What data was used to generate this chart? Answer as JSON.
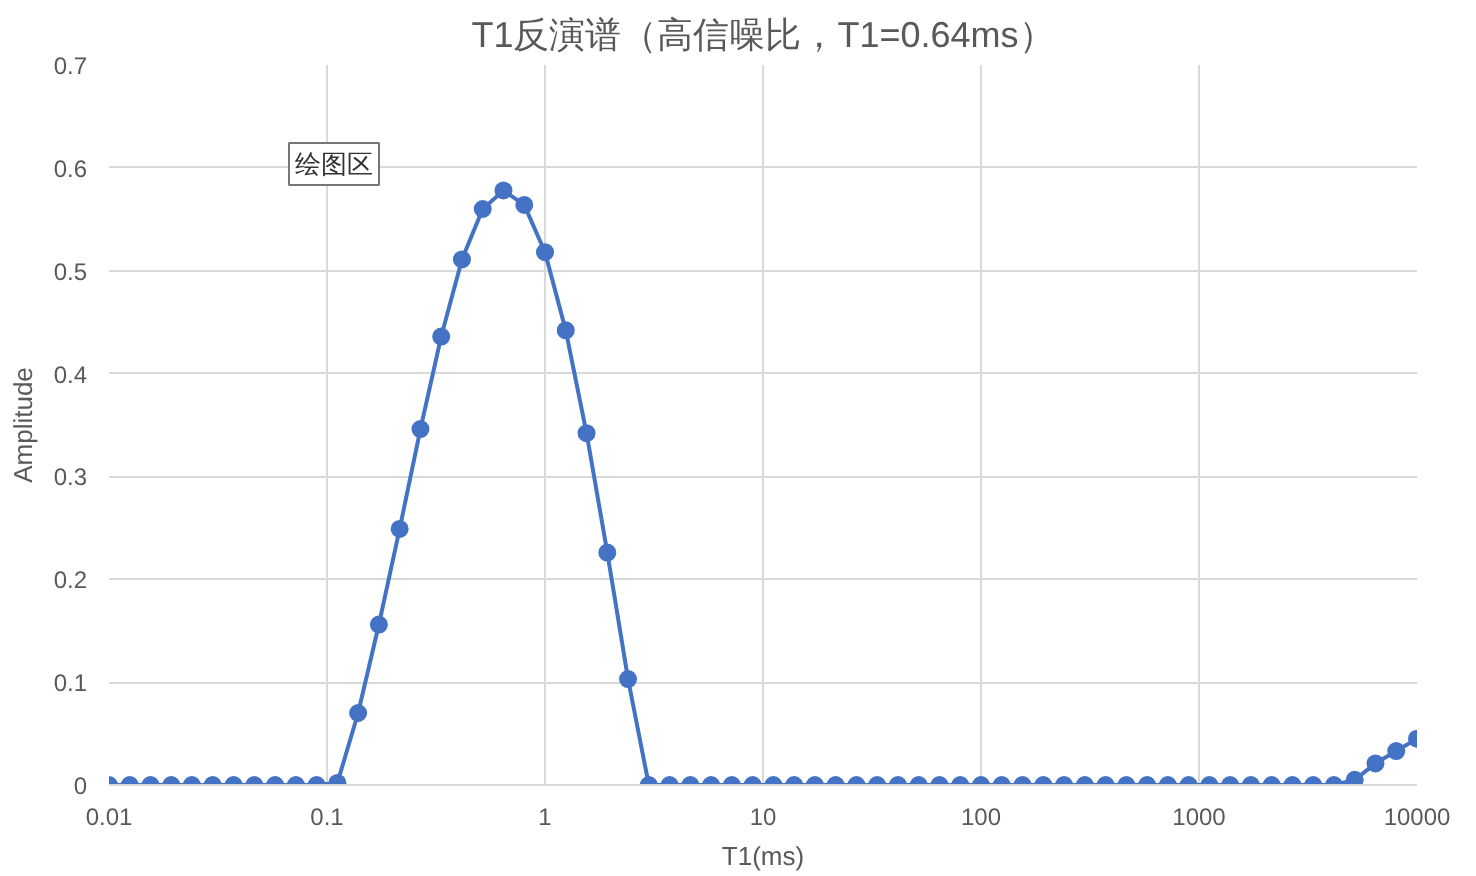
{
  "chart_data": {
    "type": "line",
    "title": "T1反演谱（高信噪比，T1=0.64ms）",
    "xlabel": "T1(ms)",
    "ylabel": "Amplitude",
    "annotations": [
      "绘图区"
    ],
    "log": "x",
    "grid": true,
    "marker": "circle",
    "line_style": "solid",
    "xlim": [
      0.01,
      10000
    ],
    "xticks": [
      0.01,
      0.1,
      1,
      10,
      100,
      1000,
      10000
    ],
    "ylim": [
      0,
      0.7
    ],
    "yticks": [
      0,
      0.1,
      0.2,
      0.3,
      0.4,
      0.5,
      0.6,
      0.7
    ],
    "x": [
      0.01,
      0.01245,
      0.0155,
      0.0193,
      0.024,
      0.0299,
      0.0373,
      0.0464,
      0.0578,
      0.072,
      0.0896,
      0.1116,
      0.1389,
      0.173,
      0.2154,
      0.2683,
      0.3341,
      0.416,
      0.5179,
      0.6449,
      0.8031,
      1.0,
      1.245,
      1.551,
      1.931,
      2.404,
      2.994,
      3.728,
      4.642,
      5.781,
      7.197,
      8.963,
      11.16,
      13.89,
      17.3,
      21.54,
      26.83,
      33.41,
      41.6,
      51.79,
      64.49,
      80.31,
      100,
      124.5,
      155.1,
      193.1,
      240.4,
      299.4,
      372.8,
      464.2,
      578.1,
      719.7,
      896.3,
      1116,
      1389,
      1730,
      2154,
      2683,
      3341,
      4160,
      5179,
      6449,
      8031,
      10000
    ],
    "series": [
      {
        "color": "#4472c4",
        "values": [
          0,
          0,
          0,
          0,
          0,
          0,
          0,
          0,
          0,
          0,
          0,
          0.002,
          0.07,
          0.156,
          0.249,
          0.346,
          0.436,
          0.511,
          0.56,
          0.578,
          0.564,
          0.518,
          0.442,
          0.342,
          0.226,
          0.103,
          0,
          0,
          0,
          0,
          0,
          0,
          0,
          0,
          0,
          0,
          0,
          0,
          0,
          0,
          0,
          0,
          0,
          0,
          0,
          0,
          0,
          0,
          0,
          0,
          0,
          0,
          0,
          0,
          0,
          0,
          0,
          0,
          0,
          0,
          0.005,
          0.021,
          0.033,
          0.045
        ]
      }
    ]
  }
}
